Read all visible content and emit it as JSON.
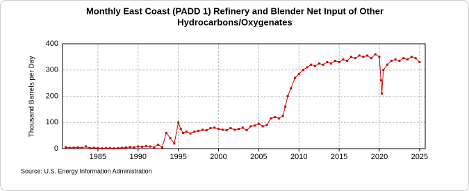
{
  "chart_data": {
    "type": "line",
    "title": [
      "Monthly East Coast (PADD 1) Refinery and Blender Net Input of Other",
      "Hydrocarbons/Oxygenates"
    ],
    "y_label": "Thousand Barrels per Day",
    "source": "Source: U.S. Energy Information Administration",
    "x": [
      1981.0,
      1981.5,
      1982.0,
      1982.5,
      1983.0,
      1983.5,
      1984.0,
      1984.5,
      1985.0,
      1985.5,
      1986.0,
      1986.5,
      1987.0,
      1987.5,
      1988.0,
      1988.5,
      1989.0,
      1989.5,
      1990.0,
      1990.5,
      1991.0,
      1991.5,
      1992.0,
      1992.5,
      1993.0,
      1993.5,
      1994.0,
      1994.5,
      1995.0,
      1995.3,
      1995.6,
      1996.0,
      1996.5,
      1997.0,
      1997.5,
      1998.0,
      1998.5,
      1999.0,
      1999.5,
      2000.0,
      2000.5,
      2001.0,
      2001.5,
      2002.0,
      2002.5,
      2003.0,
      2003.5,
      2004.0,
      2004.5,
      2005.0,
      2005.5,
      2006.0,
      2006.5,
      2007.0,
      2007.5,
      2008.0,
      2008.3,
      2008.6,
      2009.0,
      2009.5,
      2010.0,
      2010.5,
      2011.0,
      2011.5,
      2012.0,
      2012.5,
      2013.0,
      2013.5,
      2014.0,
      2014.5,
      2015.0,
      2015.5,
      2016.0,
      2016.5,
      2017.0,
      2017.5,
      2018.0,
      2018.5,
      2019.0,
      2019.5,
      2020.0,
      2020.2,
      2020.3,
      2020.5,
      2021.0,
      2021.5,
      2022.0,
      2022.5,
      2023.0,
      2023.5,
      2024.0,
      2024.5,
      2025.0
    ],
    "series": [
      {
        "name": "East Coast (PADD 1)",
        "color": "#cc0000",
        "values": [
          5,
          3,
          4,
          5,
          3,
          8,
          2,
          3,
          2,
          1,
          2,
          2,
          1,
          2,
          3,
          4,
          6,
          5,
          8,
          7,
          10,
          8,
          5,
          15,
          5,
          60,
          40,
          20,
          100,
          75,
          60,
          65,
          58,
          65,
          68,
          72,
          70,
          78,
          80,
          75,
          72,
          70,
          78,
          72,
          75,
          80,
          70,
          85,
          88,
          95,
          85,
          90,
          115,
          120,
          115,
          125,
          160,
          200,
          230,
          270,
          285,
          300,
          310,
          320,
          315,
          325,
          320,
          330,
          325,
          335,
          330,
          340,
          335,
          350,
          345,
          355,
          350,
          355,
          345,
          360,
          350,
          260,
          210,
          300,
          320,
          335,
          340,
          335,
          345,
          340,
          350,
          345,
          330
        ]
      }
    ],
    "xlim": [
      1980.6,
      2025.7
    ],
    "xticks": [
      1985,
      1990,
      1995,
      2000,
      2005,
      2010,
      2015,
      2020,
      2025
    ],
    "ylim": [
      0,
      400
    ],
    "yticks": [
      0,
      100,
      200,
      300,
      400
    ],
    "grid": true
  }
}
